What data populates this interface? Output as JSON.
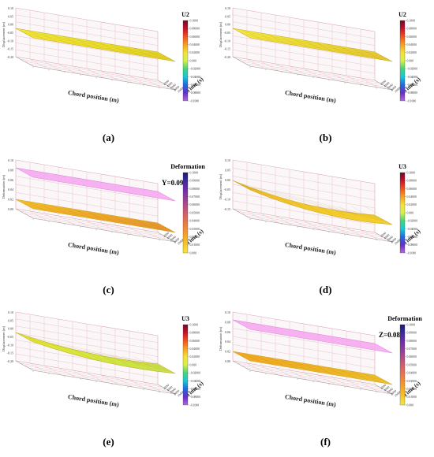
{
  "panels": [
    {
      "caption": "(a)",
      "ylabel": "Displacement (m)",
      "xlabel": "Chord position (m)",
      "zlabel": "Time (s)",
      "legend": {
        "title": "U2",
        "ticks": [
          "0.1000",
          "0.08000",
          "0.06000",
          "0.04000",
          "0.02000",
          "0.000",
          "-0.02000",
          "-0.04000",
          "-0.06000",
          "-0.08000",
          "-0.1000"
        ]
      },
      "zticks": [
        "0.10",
        "0.05",
        "0.00",
        "-0.05",
        "-0.10",
        "-0.15",
        "-0.20"
      ],
      "timeticks": [
        "2000",
        "4000",
        "6000",
        "8000",
        "10000"
      ],
      "plane": null
    },
    {
      "caption": "(b)",
      "ylabel": "Displacement (m)",
      "xlabel": "Chord position (m)",
      "zlabel": "Time (s)",
      "legend": {
        "title": "U2",
        "ticks": [
          "0.1000",
          "0.08000",
          "0.06000",
          "0.04000",
          "0.02000",
          "0.000",
          "-0.02000",
          "-0.04000",
          "-0.06000",
          "-0.08000",
          "-0.1000"
        ]
      },
      "zticks": [
        "0.10",
        "0.05",
        "0.00",
        "-0.05",
        "-0.10",
        "-0.15",
        "-0.20"
      ],
      "timeticks": [
        "2000",
        "4000",
        "6000",
        "8000",
        "10000"
      ],
      "plane": null
    },
    {
      "caption": "(c)",
      "ylabel": "Deformation (m)",
      "xlabel": "Chord position (m)",
      "zlabel": "Time (s)",
      "legend": {
        "title": "Deformation",
        "ticks": [
          "0.1000",
          "0.09000",
          "0.08000",
          "0.07000",
          "0.06000",
          "0.05000",
          "0.04000",
          "0.03000",
          "0.02000",
          "0.01000",
          "0.000"
        ]
      },
      "zticks": [
        "0.10",
        "0.08",
        "0.06",
        "0.04",
        "0.02",
        "0.00"
      ],
      "timeticks": [
        "2000",
        "4000",
        "6000",
        "8000",
        "10000"
      ],
      "plane": {
        "label": "Y=0.094"
      }
    },
    {
      "caption": "(d)",
      "ylabel": "Displacement (m)",
      "xlabel": "Chord position (m)",
      "zlabel": "Time (s)",
      "legend": {
        "title": "U3",
        "ticks": [
          "0.1000",
          "0.08000",
          "0.06000",
          "0.04000",
          "0.02000",
          "0.000",
          "-0.02000",
          "-0.04000",
          "-0.06000",
          "-0.08000",
          "-0.1000"
        ]
      },
      "zticks": [
        "0.10",
        "0.05",
        "0.00",
        "-0.05",
        "-0.10",
        "-0.15"
      ],
      "timeticks": [
        "2000",
        "4000",
        "6000",
        "8000",
        "10000"
      ],
      "plane": null
    },
    {
      "caption": "(e)",
      "ylabel": "Displacement (m)",
      "xlabel": "Chord position (m)",
      "zlabel": "Time (s)",
      "legend": {
        "title": "U3",
        "ticks": [
          "0.1000",
          "0.08000",
          "0.06000",
          "0.04000",
          "0.02000",
          "0.000",
          "-0.02000",
          "-0.04000",
          "-0.06000",
          "-0.08000",
          "-0.1000"
        ]
      },
      "zticks": [
        "0.10",
        "0.05",
        "0.00",
        "-0.05",
        "-0.10",
        "-0.15",
        "-0.20"
      ],
      "timeticks": [
        "2000",
        "4000",
        "6000",
        "8000",
        "10000"
      ],
      "plane": null
    },
    {
      "caption": "(f)",
      "ylabel": "Deformation (m)",
      "xlabel": "Chord position (m)",
      "zlabel": "Time (s)",
      "legend": {
        "title": "Deformation",
        "ticks": [
          "0.1000",
          "0.09000",
          "0.08000",
          "0.07000",
          "0.06000",
          "0.05000",
          "0.04000",
          "0.03000",
          "0.02000",
          "0.01000",
          "0.000"
        ]
      },
      "zticks": [
        "0.10",
        "0.08",
        "0.06",
        "0.04",
        "0.02",
        "0.00"
      ],
      "timeticks": [
        "2000",
        "4000",
        "6000",
        "8000",
        "10000"
      ],
      "plane": {
        "label": "Z=0.08"
      }
    }
  ],
  "chart_data": [
    {
      "type": "surface",
      "panel": "(a)",
      "variable": "U2",
      "zlim": [
        -0.2,
        0.1
      ],
      "time_range": [
        0,
        10000
      ],
      "plane_value": null
    },
    {
      "type": "surface",
      "panel": "(b)",
      "variable": "U2",
      "zlim": [
        -0.2,
        0.1
      ],
      "time_range": [
        0,
        10000
      ],
      "plane_value": null
    },
    {
      "type": "surface",
      "panel": "(c)",
      "variable": "Deformation",
      "zlim": [
        0.0,
        0.1
      ],
      "time_range": [
        0,
        10000
      ],
      "plane_value": 0.094
    },
    {
      "type": "surface",
      "panel": "(d)",
      "variable": "U3",
      "zlim": [
        -0.15,
        0.1
      ],
      "time_range": [
        0,
        10000
      ],
      "plane_value": null
    },
    {
      "type": "surface",
      "panel": "(e)",
      "variable": "U3",
      "zlim": [
        -0.2,
        0.1
      ],
      "time_range": [
        0,
        10000
      ],
      "plane_value": null
    },
    {
      "type": "surface",
      "panel": "(f)",
      "variable": "Deformation",
      "zlim": [
        0.0,
        0.1
      ],
      "time_range": [
        0,
        10000
      ],
      "plane_value": 0.08
    }
  ]
}
